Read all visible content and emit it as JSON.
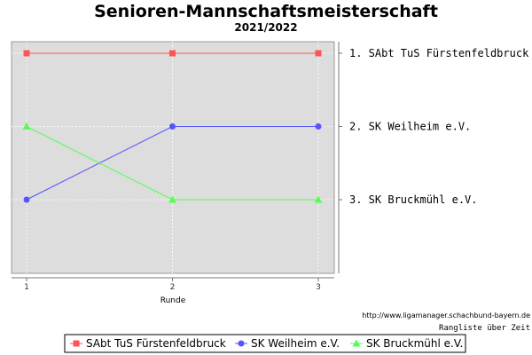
{
  "chart_data": {
    "type": "line",
    "title": "Senioren-Mannschaftsmeisterschaft",
    "subtitle": "2021/2022",
    "xlabel": "Runde",
    "x": [
      1,
      2,
      3
    ],
    "ylim": [
      0,
      3
    ],
    "y_inverted": true,
    "rank_labels": [
      "1. SAbt TuS Fürstenfeldbruck",
      "2. SK Weilheim e.V.",
      "3. SK Bruckmühl e.V."
    ],
    "series": [
      {
        "name": "SAbt TuS Fürstenfeldbruck",
        "values": [
          1,
          1,
          1
        ],
        "color": "#ff5555",
        "marker": "square"
      },
      {
        "name": "SK Weilheim e.V.",
        "values": [
          3,
          2,
          2
        ],
        "color": "#5555ff",
        "marker": "circle"
      },
      {
        "name": "SK Bruckmühl e.V.",
        "values": [
          2,
          3,
          3
        ],
        "color": "#55ff55",
        "marker": "triangle"
      }
    ],
    "grid": true,
    "legend_position": "bottom",
    "plot_background": "#dddddd"
  },
  "footer": {
    "url": "http://www.ligamanager.schachbund-bayern.de",
    "caption": "Rangliste über Zeit"
  }
}
